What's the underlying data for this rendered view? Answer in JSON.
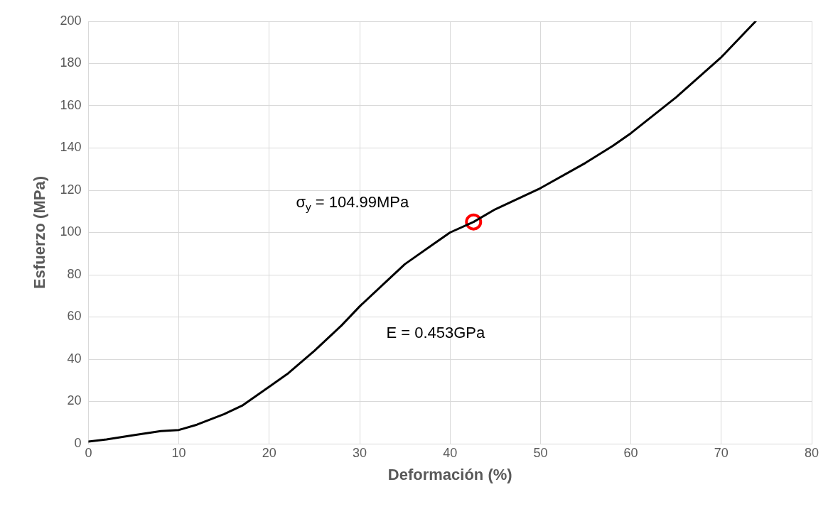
{
  "chart_data": {
    "type": "line",
    "xlabel": "Deformación (%)",
    "ylabel": "Esfuerzo (MPa)",
    "xlim": [
      0,
      80
    ],
    "xticks": [
      0,
      10,
      20,
      30,
      40,
      50,
      60,
      70,
      80
    ],
    "ylim": [
      0,
      200
    ],
    "yticks": [
      0,
      20,
      40,
      60,
      80,
      100,
      120,
      140,
      160,
      180,
      200
    ],
    "grid": true,
    "legend": false,
    "series": [
      {
        "type": "line",
        "color": "#000000",
        "marker": "none",
        "x": [
          0,
          2,
          5,
          8,
          10,
          12,
          15,
          17,
          20,
          22,
          25,
          28,
          30,
          33,
          35,
          38,
          40,
          42.6,
          45,
          50,
          55,
          58,
          60,
          65,
          70,
          73.8
        ],
        "values": [
          1,
          2,
          4,
          6,
          6.5,
          9,
          14,
          18,
          27,
          33,
          44,
          56,
          65,
          77,
          85,
          94,
          100,
          105,
          111,
          121,
          133,
          141,
          147,
          164,
          183,
          200
        ]
      },
      {
        "type": "scatter",
        "color": "#ff0000",
        "marker": "circle",
        "x": [
          42.6
        ],
        "values": [
          105
        ]
      }
    ],
    "annotations": [
      "σ$_{y}$ = 104.99MPa",
      "E = 0.453GPa"
    ]
  }
}
